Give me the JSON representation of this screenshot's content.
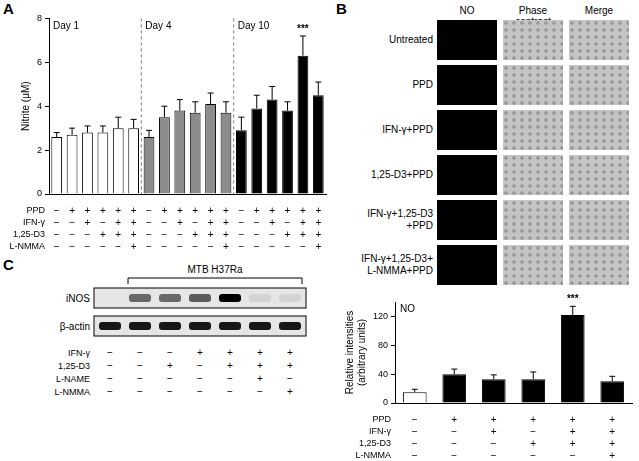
{
  "panels": [
    "A",
    "B",
    "C"
  ],
  "chart_data": [
    {
      "type": "bar",
      "ylabel": "Nitrite (μM)",
      "ylim": [
        0,
        8
      ],
      "yticks": [
        0,
        2,
        4,
        6,
        8
      ],
      "grid": false,
      "tick_labels": "y",
      "series": [
        {
          "name": "Day 1",
          "color": "#ffffff",
          "values": [
            2.6,
            2.7,
            2.8,
            2.8,
            3.0,
            3.0
          ],
          "errors": [
            0.2,
            0.3,
            0.3,
            0.3,
            0.5,
            0.4
          ],
          "marks": [
            null,
            null,
            null,
            null,
            null,
            null
          ]
        },
        {
          "name": "Day 4",
          "color": "#8c8c8c",
          "values": [
            2.6,
            3.5,
            3.8,
            3.7,
            4.1,
            3.7
          ],
          "errors": [
            0.3,
            0.5,
            0.5,
            0.5,
            0.5,
            0.5
          ],
          "marks": [
            null,
            null,
            null,
            null,
            null,
            null
          ]
        },
        {
          "name": "Day 10",
          "color": "#000000",
          "values": [
            2.9,
            3.9,
            4.3,
            3.8,
            6.3,
            4.5
          ],
          "errors": [
            0.6,
            0.6,
            0.6,
            0.4,
            0.9,
            0.6
          ],
          "marks": [
            null,
            null,
            null,
            null,
            "***",
            null
          ]
        }
      ],
      "treatments": [
        {
          "name": "PPD",
          "signs": [
            "−",
            "+",
            "+",
            "+",
            "+",
            "+"
          ]
        },
        {
          "name": "IFN-γ",
          "signs": [
            "−",
            "−",
            "+",
            "−",
            "+",
            "+"
          ]
        },
        {
          "name": "1,25-D3",
          "signs": [
            "−",
            "−",
            "−",
            "+",
            "+",
            "+"
          ]
        },
        {
          "name": "L-NMMA",
          "signs": [
            "−",
            "−",
            "−",
            "−",
            "−",
            "+"
          ]
        }
      ]
    },
    {
      "type": "bar",
      "title": "NO",
      "ylabel": [
        "Relative intensities",
        "(arbitrary units)"
      ],
      "ylim": [
        0,
        140
      ],
      "yticks": [
        0,
        40,
        80,
        120
      ],
      "grid": false,
      "tick_labels": "y",
      "values": [
        15,
        40,
        33,
        33,
        122,
        30
      ],
      "errors": [
        4,
        7,
        6,
        10,
        12,
        7
      ],
      "colors": [
        "#ffffff",
        "#000000",
        "#000000",
        "#000000",
        "#000000",
        "#000000"
      ],
      "marks": [
        null,
        null,
        null,
        null,
        "***",
        null
      ],
      "treatments": [
        {
          "name": "PPD",
          "signs": [
            "−",
            "+",
            "+",
            "+",
            "+",
            "+"
          ]
        },
        {
          "name": "IFN-γ",
          "signs": [
            "−",
            "−",
            "+",
            "−",
            "+",
            "+"
          ]
        },
        {
          "name": "1,25-D3",
          "signs": [
            "−",
            "−",
            "−",
            "+",
            "+",
            "+"
          ]
        },
        {
          "name": "L-NMMA",
          "signs": [
            "−",
            "−",
            "−",
            "−",
            "−",
            "+"
          ]
        }
      ]
    }
  ],
  "image_grid": {
    "columns": [
      "NO",
      "Phase contrast",
      "Merge"
    ],
    "rows": [
      [
        "Untreated"
      ],
      [
        "PPD"
      ],
      [
        "IFN-γ+PPD"
      ],
      [
        "1,25-D3+PPD"
      ],
      [
        "IFN-γ+1,25-D3",
        "+PPD"
      ],
      [
        "IFN-γ+1,25-D3+",
        "L-NMMA+PPD"
      ]
    ]
  },
  "blot": {
    "header": "MTB H37Ra",
    "header_lanes": [
      false,
      true,
      true,
      true,
      true,
      true,
      true
    ],
    "bands": [
      {
        "name": "iNOS",
        "intensity": [
          0,
          0.55,
          0.55,
          0.6,
          1,
          0.08,
          0.08
        ]
      },
      {
        "name": "β-actin",
        "intensity": [
          0.9,
          0.9,
          0.9,
          0.9,
          0.9,
          0.9,
          0.9
        ]
      }
    ],
    "treatments": [
      {
        "name": "IFN-γ",
        "signs": [
          "−",
          "−",
          "−",
          "+",
          "+",
          "+",
          "+"
        ]
      },
      {
        "name": "1,25-D3",
        "signs": [
          "−",
          "−",
          "+",
          "−",
          "+",
          "+",
          "+"
        ]
      },
      {
        "name": "L-NAME",
        "signs": [
          "−",
          "−",
          "−",
          "−",
          "−",
          "+",
          "−"
        ]
      },
      {
        "name": "L-NMMA",
        "signs": [
          "−",
          "−",
          "−",
          "−",
          "−",
          "−",
          "+"
        ]
      }
    ]
  }
}
